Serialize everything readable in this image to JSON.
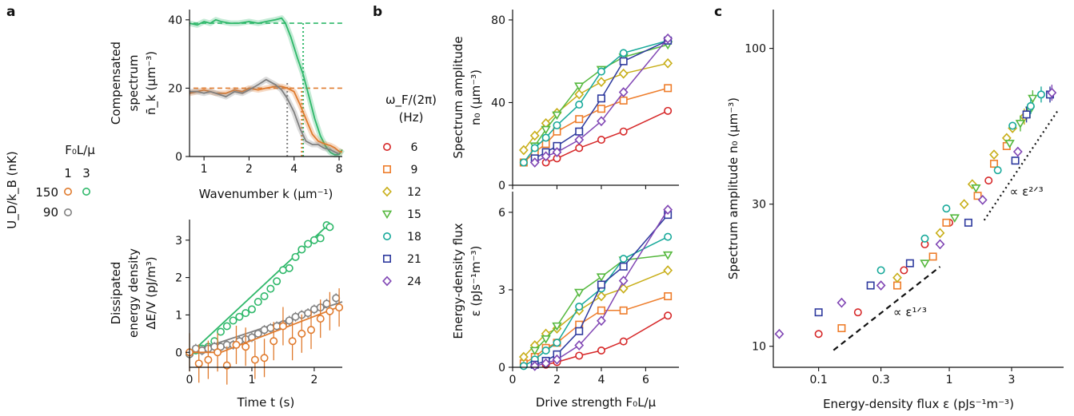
{
  "panel_labels": {
    "a": "a",
    "b": "b",
    "c": "c"
  },
  "legend_a": {
    "title": "F₀L/μ",
    "cols": [
      "1",
      "3"
    ],
    "rows": [
      "150",
      "90"
    ],
    "ylabel": "U_D/k_B (nK)"
  },
  "legend_b": {
    "title": "ω_F/(2π)",
    "unit": "(Hz)",
    "entries": [
      "6",
      "9",
      "12",
      "15",
      "18",
      "21",
      "24"
    ],
    "colors": [
      "#d62728",
      "#ee7d2b",
      "#c8ae18",
      "#55b83e",
      "#17a99a",
      "#2e3a9e",
      "#8046b4"
    ],
    "markers": [
      "circle",
      "square",
      "diamond",
      "triangle-down",
      "circle",
      "square",
      "diamond"
    ]
  },
  "chart_data": [
    {
      "id": "a-top",
      "type": "line",
      "ylabel_lines": [
        "Compensated",
        "spectrum",
        "n̄_k (μm⁻³)"
      ],
      "xlabel": "Wavenumber k (μm⁻¹)",
      "xlim": [
        0.8,
        8.4
      ],
      "ylim": [
        0,
        43
      ],
      "xscale": "log",
      "xticks": [
        1,
        2,
        4,
        8
      ],
      "yticks": [
        0,
        20,
        40
      ],
      "series": [
        {
          "color": "#2fb86a",
          "x": [
            0.8,
            0.9,
            1.0,
            1.1,
            1.2,
            1.3,
            1.5,
            1.7,
            2.0,
            2.3,
            2.6,
            3.0,
            3.3,
            3.5,
            3.8,
            4.2,
            4.6,
            5.0,
            5.5,
            6.0,
            6.5,
            7.0,
            7.5,
            8.0,
            8.4
          ],
          "y": [
            39,
            38.5,
            39.5,
            39,
            40,
            39.5,
            39,
            39,
            39.5,
            39,
            39.5,
            40,
            40.5,
            39,
            35,
            29,
            24,
            18,
            11,
            6,
            3,
            1.2,
            0.5,
            0.6,
            2.0
          ]
        },
        {
          "color": "#e07b2e",
          "x": [
            0.8,
            0.9,
            1.0,
            1.1,
            1.2,
            1.4,
            1.6,
            1.8,
            2.0,
            2.3,
            2.6,
            3.0,
            3.3,
            3.6,
            4.0,
            4.4,
            4.8,
            5.3,
            5.8,
            6.3,
            7.0,
            7.5,
            8.0,
            8.4
          ],
          "y": [
            18.5,
            19,
            19.5,
            19,
            18.5,
            18.5,
            19.5,
            19,
            20,
            19.5,
            20,
            20.5,
            20.5,
            20,
            19,
            15,
            11,
            6.5,
            4.5,
            3.8,
            3.2,
            2.5,
            1.5,
            1.3
          ]
        },
        {
          "color": "#808080",
          "x": [
            0.8,
            0.9,
            1.0,
            1.1,
            1.2,
            1.4,
            1.6,
            1.8,
            2.0,
            2.3,
            2.6,
            3.0,
            3.3,
            3.6,
            4.0,
            4.4,
            4.8,
            5.3,
            5.8,
            6.3,
            7.0,
            7.5,
            8.0
          ],
          "y": [
            19,
            19,
            18.5,
            19,
            18.5,
            17.5,
            19,
            18.5,
            19.5,
            21,
            22.5,
            21,
            19.5,
            17,
            13,
            8,
            4.5,
            3.5,
            3.5,
            2.5,
            2.0,
            1.3,
            0.7
          ]
        }
      ],
      "hlines": [
        {
          "y": 39,
          "color": "#2fb86a"
        },
        {
          "y": 20,
          "color": "#e07b2e"
        }
      ],
      "vlines": [
        {
          "x": 4.6,
          "y": 39,
          "color": "#2fb86a"
        },
        {
          "x": 4.5,
          "y": 20,
          "color": "#e07b2e"
        },
        {
          "x": 3.6,
          "y": 22,
          "color": "#808080"
        }
      ]
    },
    {
      "id": "a-bottom",
      "type": "scatter",
      "ylabel_lines": [
        "Dissipated",
        "energy density",
        "ΔE/V (pJ/m³)"
      ],
      "xlabel": "Time t (s)",
      "xlim": [
        0,
        2.45
      ],
      "ylim": [
        -0.4,
        3.55
      ],
      "xticks": [
        0,
        1,
        2
      ],
      "yticks": [
        0,
        1,
        2,
        3
      ],
      "series": [
        {
          "color": "#2fb86a",
          "x": [
            0,
            0.1,
            0.2,
            0.3,
            0.4,
            0.5,
            0.6,
            0.7,
            0.8,
            0.9,
            1.0,
            1.1,
            1.2,
            1.3,
            1.4,
            1.5,
            1.6,
            1.7,
            1.8,
            1.9,
            2.0,
            2.1,
            2.2,
            2.25
          ],
          "y": [
            -0.05,
            0.05,
            0.1,
            0.15,
            0.3,
            0.55,
            0.7,
            0.85,
            0.95,
            1.05,
            1.15,
            1.35,
            1.5,
            1.7,
            1.9,
            2.2,
            2.25,
            2.55,
            2.75,
            2.9,
            3.0,
            3.05,
            3.4,
            3.35
          ],
          "fit": [
            [
              0,
              -0.05
            ],
            [
              2.25,
              3.45
            ]
          ]
        },
        {
          "color": "#808080",
          "x": [
            0,
            0.1,
            0.2,
            0.3,
            0.4,
            0.5,
            0.6,
            0.7,
            0.8,
            0.9,
            1.0,
            1.1,
            1.2,
            1.3,
            1.4,
            1.5,
            1.6,
            1.7,
            1.8,
            1.9,
            2.0,
            2.1,
            2.2,
            2.35
          ],
          "y": [
            -0.05,
            0.1,
            0.05,
            0.1,
            0.15,
            0.15,
            0.2,
            0.2,
            0.3,
            0.35,
            0.4,
            0.5,
            0.6,
            0.65,
            0.7,
            0.75,
            0.85,
            0.95,
            1.0,
            1.05,
            1.15,
            1.2,
            1.3,
            1.45
          ],
          "fit": [
            [
              0,
              0.0
            ],
            [
              2.45,
              1.35
            ]
          ]
        },
        {
          "color": "#e07b2e",
          "x": [
            0,
            0.15,
            0.3,
            0.45,
            0.6,
            0.75,
            0.9,
            1.05,
            1.2,
            1.35,
            1.5,
            1.65,
            1.8,
            1.95,
            2.1,
            2.25,
            2.4
          ],
          "y": [
            0.0,
            -0.3,
            -0.2,
            0.0,
            -0.35,
            0.2,
            0.15,
            -0.2,
            -0.15,
            0.3,
            0.7,
            0.3,
            0.5,
            0.6,
            0.9,
            1.1,
            1.2
          ],
          "fit": [
            [
              0,
              0
            ],
            [
              0.5,
              0
            ],
            [
              2.45,
              1.25
            ]
          ]
        }
      ]
    },
    {
      "id": "b-top",
      "type": "line",
      "ylabel_lines": [
        "Spectrum amplitude",
        "n₀ (μm⁻³)"
      ],
      "xlim": [
        0,
        7.5
      ],
      "ylim": [
        0,
        85
      ],
      "xticks": [
        0,
        2,
        4,
        6
      ],
      "yticks": [
        0,
        40,
        80
      ],
      "x": [
        0.5,
        1,
        1.5,
        2,
        3,
        4,
        5,
        7
      ],
      "series": [
        {
          "color": "#d62728",
          "marker": "circle",
          "x": [
            1.5,
            2,
            3,
            4,
            5,
            7
          ],
          "y": [
            11,
            13,
            18,
            22,
            26,
            36
          ]
        },
        {
          "color": "#ee7d2b",
          "marker": "square",
          "x": [
            0.5,
            1,
            1.5,
            2,
            3,
            4,
            5,
            7
          ],
          "y": [
            11,
            16,
            20,
            26,
            32,
            37,
            41,
            47
          ]
        },
        {
          "color": "#c8ae18",
          "marker": "diamond",
          "x": [
            0.5,
            1,
            1.5,
            2,
            3,
            4,
            5,
            7
          ],
          "y": [
            17,
            24,
            30,
            35,
            44,
            50,
            54,
            59
          ]
        },
        {
          "color": "#55b83e",
          "marker": "triangle-down",
          "x": [
            1,
            1.5,
            2,
            3,
            4,
            5,
            7
          ],
          "y": [
            19,
            27,
            34,
            48,
            56,
            62,
            68
          ]
        },
        {
          "color": "#17a99a",
          "marker": "circle",
          "x": [
            0.5,
            1,
            1.5,
            2,
            3,
            4,
            5,
            7
          ],
          "y": [
            11,
            18,
            23,
            29,
            39,
            55,
            64,
            70
          ]
        },
        {
          "color": "#2e3a9e",
          "marker": "square",
          "x": [
            1,
            1.5,
            2,
            3,
            4,
            5,
            7
          ],
          "y": [
            13,
            16,
            19,
            26,
            42,
            60,
            70
          ]
        },
        {
          "color": "#8046b4",
          "marker": "diamond",
          "x": [
            1,
            1.5,
            2,
            3,
            4,
            5,
            7
          ],
          "y": [
            11,
            14,
            16,
            22,
            31,
            45,
            71
          ]
        }
      ]
    },
    {
      "id": "b-bottom",
      "type": "line",
      "ylabel_lines": [
        "Energy-density flux",
        "ε (pJs⁻¹m⁻³)"
      ],
      "xlabel": "Drive strength F₀L/μ",
      "xlim": [
        0,
        7.5
      ],
      "ylim": [
        0,
        6.8
      ],
      "xticks": [
        0,
        2,
        4,
        6
      ],
      "yticks": [
        0,
        3,
        6
      ],
      "series": [
        {
          "color": "#d62728",
          "marker": "circle",
          "x": [
            1.5,
            2,
            3,
            4,
            5,
            7
          ],
          "y": [
            0.1,
            0.2,
            0.45,
            0.65,
            1.0,
            2.0
          ]
        },
        {
          "color": "#ee7d2b",
          "marker": "square",
          "x": [
            0.5,
            1,
            1.5,
            2,
            3,
            4,
            5,
            7
          ],
          "y": [
            0.15,
            0.4,
            0.75,
            0.95,
            1.65,
            2.2,
            2.2,
            2.75
          ]
        },
        {
          "color": "#c8ae18",
          "marker": "diamond",
          "x": [
            0.5,
            1,
            1.5,
            2,
            3,
            4,
            5,
            7
          ],
          "y": [
            0.4,
            0.85,
            1.3,
            1.5,
            2.2,
            2.75,
            3.05,
            3.75
          ]
        },
        {
          "color": "#55b83e",
          "marker": "triangle-down",
          "x": [
            1,
            1.5,
            2,
            3,
            4,
            5,
            7
          ],
          "y": [
            0.65,
            1.1,
            1.6,
            2.9,
            3.5,
            4.15,
            4.35
          ]
        },
        {
          "color": "#17a99a",
          "marker": "circle",
          "x": [
            0.5,
            1,
            1.5,
            2,
            3,
            4,
            5,
            7
          ],
          "y": [
            0.05,
            0.3,
            0.65,
            0.95,
            2.35,
            3.05,
            4.2,
            5.05
          ]
        },
        {
          "color": "#2e3a9e",
          "marker": "square",
          "x": [
            1,
            1.5,
            2,
            3,
            4,
            5,
            7
          ],
          "y": [
            0.1,
            0.25,
            0.5,
            1.4,
            3.2,
            3.9,
            5.9
          ]
        },
        {
          "color": "#8046b4",
          "marker": "diamond",
          "x": [
            1,
            1.5,
            2,
            3,
            4,
            5,
            7
          ],
          "y": [
            0.05,
            0.15,
            0.3,
            0.85,
            1.8,
            3.35,
            6.1
          ]
        }
      ]
    },
    {
      "id": "c",
      "type": "scatter",
      "xscale": "log",
      "yscale": "log",
      "ylabel": "Spectrum amplitude n₀ (μm⁻³)",
      "xlabel": "Energy-density flux ε (pJs⁻¹m⁻³)",
      "xlim": [
        0.045,
        7.5
      ],
      "ylim": [
        8.5,
        135
      ],
      "xticks": [
        0.1,
        0.3,
        1,
        3
      ],
      "xticklabels": [
        "0.1",
        "0.3",
        "1",
        "3"
      ],
      "yticks": [
        10,
        30,
        100
      ],
      "yticklabels": [
        "10",
        "30",
        "100"
      ],
      "annotations": [
        {
          "text": "∝ ε¹ᐟ³",
          "line": [
            [
              0.13,
              9.7
            ],
            [
              0.85,
              18.5
            ]
          ],
          "label_at": [
            0.5,
            12.6
          ]
        },
        {
          "text": "∝ ε²ᐟ³",
          "line": [
            [
              1.85,
              26.5
            ],
            [
              6.8,
              62
            ]
          ],
          "label_at": [
            3.9,
            32
          ]
        }
      ],
      "series": [
        {
          "color": "#d62728",
          "marker": "circle",
          "x": [
            0.1,
            0.2,
            0.45,
            0.65,
            1.0,
            2.0
          ],
          "y": [
            11,
            13,
            18,
            22,
            26,
            36
          ]
        },
        {
          "color": "#ee7d2b",
          "marker": "square",
          "x": [
            0.15,
            0.4,
            0.75,
            0.95,
            1.65,
            2.2,
            2.75
          ],
          "y": [
            11.5,
            16,
            20,
            26,
            32,
            41,
            47
          ]
        },
        {
          "color": "#c8ae18",
          "marker": "diamond",
          "x": [
            0.4,
            0.85,
            1.3,
            1.5,
            2.2,
            2.75,
            3.05,
            3.75
          ],
          "y": [
            17,
            24,
            30,
            35,
            44,
            50,
            54,
            59
          ]
        },
        {
          "color": "#55b83e",
          "marker": "triangle-down",
          "x": [
            0.65,
            1.1,
            1.6,
            2.9,
            3.5,
            4.15,
            4.35
          ],
          "y": [
            19,
            27,
            34,
            48,
            56,
            62,
            68
          ]
        },
        {
          "color": "#17a99a",
          "marker": "circle",
          "x": [
            0.3,
            0.65,
            0.95,
            2.35,
            3.05,
            4.2,
            5.05
          ],
          "y": [
            18,
            23,
            29,
            39,
            55,
            64,
            70
          ]
        },
        {
          "color": "#2e3a9e",
          "marker": "square",
          "x": [
            0.1,
            0.25,
            0.5,
            1.4,
            3.2,
            3.9,
            5.9
          ],
          "y": [
            13,
            16,
            19,
            26,
            42,
            60,
            70
          ]
        },
        {
          "color": "#8046b4",
          "marker": "diamond",
          "x": [
            0.05,
            0.15,
            0.3,
            0.85,
            1.8,
            3.35,
            6.1
          ],
          "y": [
            11,
            14,
            16,
            22,
            31,
            45,
            71
          ]
        }
      ]
    }
  ]
}
